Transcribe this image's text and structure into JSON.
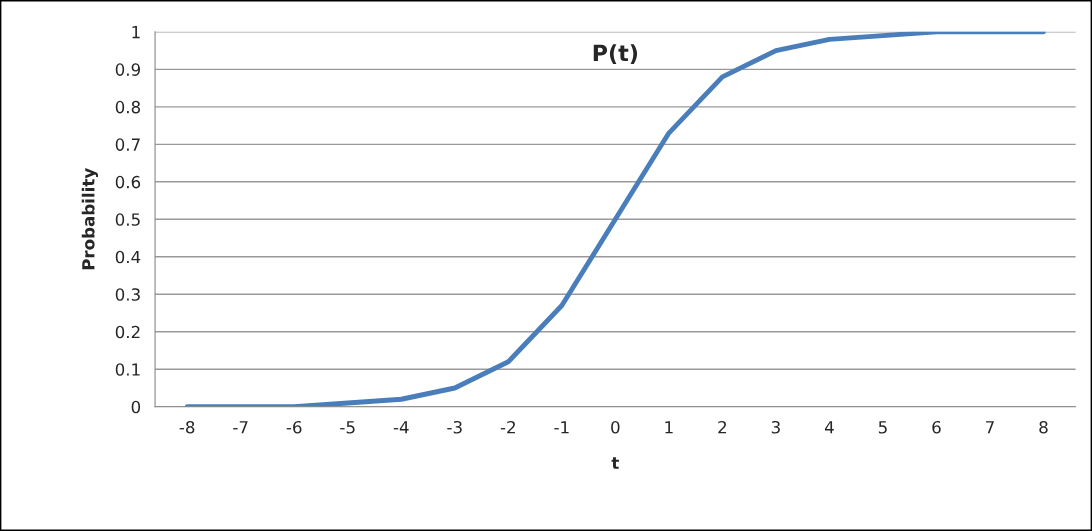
{
  "chart_data": {
    "type": "line",
    "title": "P(t)",
    "xlabel": "t",
    "ylabel": "Probability",
    "categories": [
      "-8",
      "-7",
      "-6",
      "-5",
      "-4",
      "-3",
      "-2",
      "-1",
      "0",
      "1",
      "2",
      "3",
      "4",
      "5",
      "6",
      "7",
      "8"
    ],
    "series": [
      {
        "color": "#4a7ebb",
        "values": [
          0.0,
          0.0,
          0.0,
          0.01,
          0.02,
          0.05,
          0.12,
          0.27,
          0.5,
          0.73,
          0.88,
          0.95,
          0.98,
          0.99,
          1.0,
          1.0,
          1.0
        ]
      }
    ],
    "ylim": [
      0,
      1
    ],
    "yticks": [
      0,
      {
        "value": 0.1,
        "label": "0.1"
      },
      {
        "value": 0.2,
        "label": "0.2"
      },
      {
        "value": 0.3,
        "label": "0.3"
      },
      {
        "value": 0.4,
        "label": "0.4"
      },
      {
        "value": 0.5,
        "label": "0.5"
      },
      {
        "value": 0.6,
        "label": "0.6"
      },
      {
        "value": 0.7,
        "label": "0.7"
      },
      {
        "value": 0.8,
        "label": "0.8"
      },
      {
        "value": 0.9,
        "label": "0.9"
      },
      1
    ],
    "grid": "y",
    "marker": "none",
    "line_style": "solid"
  }
}
